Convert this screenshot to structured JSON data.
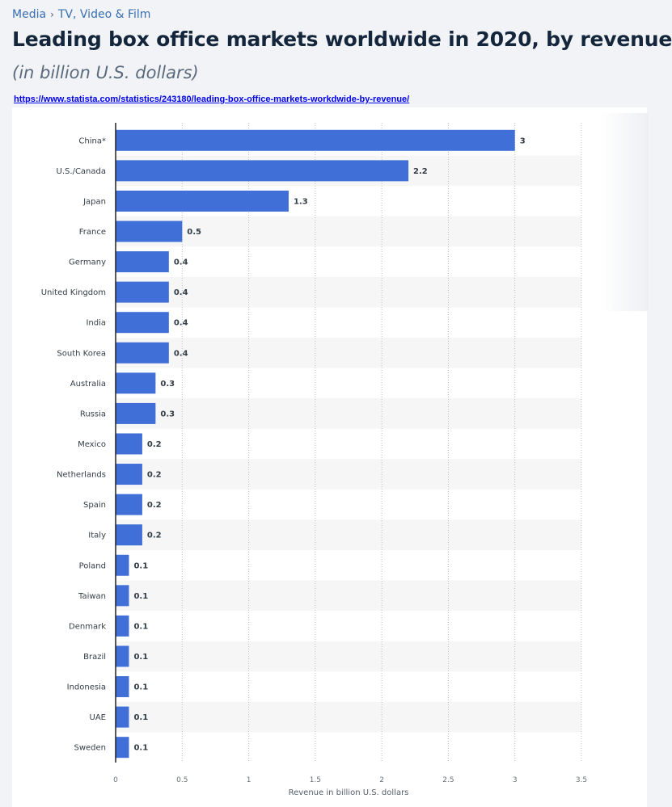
{
  "breadcrumb": {
    "root": "Media",
    "separator": "›",
    "current": "TV, Video & Film"
  },
  "title": "Leading box office markets worldwide in 2020, by revenue",
  "subtitle": "(in billion U.S. dollars)",
  "source_url": "https://www.statista.com/statistics/243180/leading-box-office-markets-workdwide-by-revenue/",
  "colors": {
    "bar": "#3f6fd7",
    "stripe": "#f6f6f7",
    "axis": "#222222",
    "grid": "#b8bec6"
  },
  "chart_data": {
    "type": "bar",
    "orientation": "horizontal",
    "categories": [
      "China*",
      "U.S./Canada",
      "Japan",
      "France",
      "Germany",
      "United Kingdom",
      "India",
      "South Korea",
      "Australia",
      "Russia",
      "Mexico",
      "Netherlands",
      "Spain",
      "Italy",
      "Poland",
      "Taiwan",
      "Denmark",
      "Brazil",
      "Indonesia",
      "UAE",
      "Sweden"
    ],
    "values": [
      3,
      2.2,
      1.3,
      0.5,
      0.4,
      0.4,
      0.4,
      0.4,
      0.3,
      0.3,
      0.2,
      0.2,
      0.2,
      0.2,
      0.1,
      0.1,
      0.1,
      0.1,
      0.1,
      0.1,
      0.1
    ],
    "value_labels": [
      "3",
      "2.2",
      "1.3",
      "0.5",
      "0.4",
      "0.4",
      "0.4",
      "0.4",
      "0.3",
      "0.3",
      "0.2",
      "0.2",
      "0.2",
      "0.2",
      "0.1",
      "0.1",
      "0.1",
      "0.1",
      "0.1",
      "0.1",
      "0.1"
    ],
    "xticks": [
      0,
      0.5,
      1,
      1.5,
      2,
      2.5,
      3,
      3.5
    ],
    "xtick_labels": [
      "0",
      "0.5",
      "1",
      "1.5",
      "2",
      "2.5",
      "3",
      "3.5"
    ],
    "xlim": [
      0,
      3.5
    ],
    "xlabel": "Revenue in billion U.S. dollars",
    "ylabel": "",
    "grid": true
  }
}
